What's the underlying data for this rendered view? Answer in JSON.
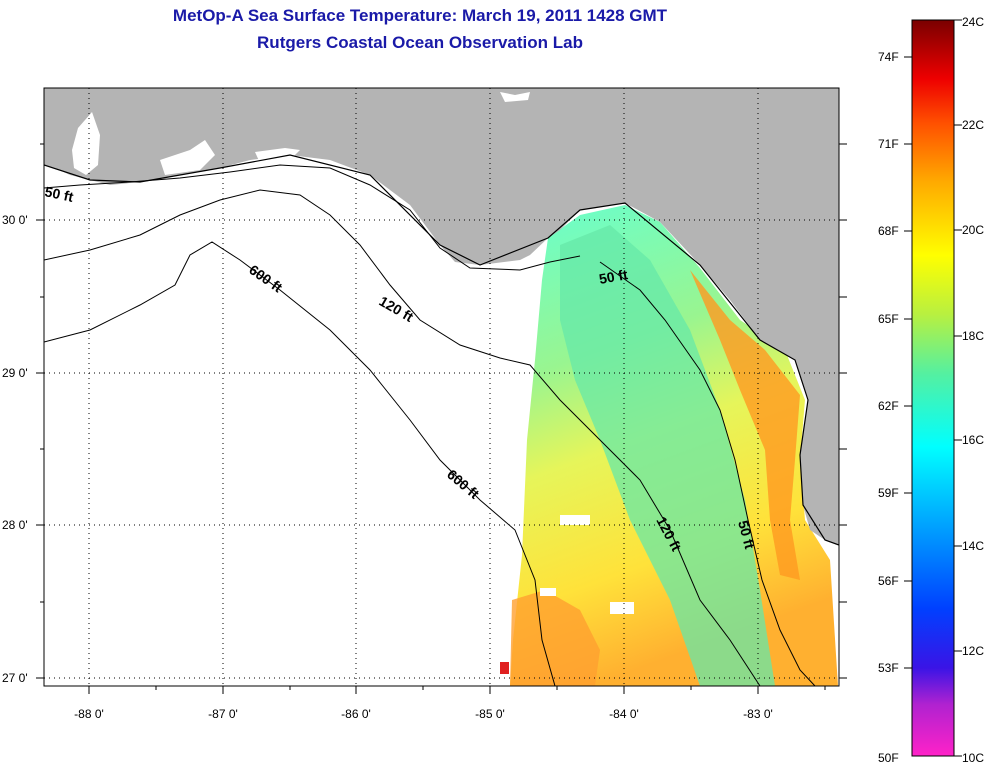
{
  "header": {
    "title": "MetOp-A Sea Surface Temperature:  March 19, 2011 1428 GMT",
    "subtitle": "Rutgers Coastal Ocean Observation Lab"
  },
  "map": {
    "longitude_ticks": [
      "-88 0'",
      "-87 0'",
      "-86 0'",
      "-85 0'",
      "-84 0'",
      "-83 0'"
    ],
    "latitude_ticks": [
      "30 0'",
      "29 0'",
      "28 0'",
      "27 0'"
    ],
    "contour_labels": [
      "50 ft",
      "600 ft",
      "120 ft",
      "50 ft",
      "600 ft",
      "120 ft",
      "50 ft"
    ],
    "colors": {
      "land": "#b4b4b4",
      "ocean_no_data": "#ffffff",
      "contour": "#000000"
    }
  },
  "colorbar": {
    "fahrenheit_labels": [
      "74F",
      "71F",
      "68F",
      "65F",
      "62F",
      "59F",
      "56F",
      "53F",
      "50F"
    ],
    "celsius_labels": [
      "24C",
      "22C",
      "20C",
      "18C",
      "16C",
      "14C",
      "12C",
      "10C"
    ],
    "range_celsius": [
      10,
      24
    ],
    "gradient_stops": [
      "#ff22c8",
      "#7a22d8",
      "#0000ff",
      "#00aaff",
      "#00ffff",
      "#22e0a0",
      "#aaee44",
      "#ffff00",
      "#ffaa00",
      "#ff4400",
      "#ee0000",
      "#7a0000"
    ]
  }
}
